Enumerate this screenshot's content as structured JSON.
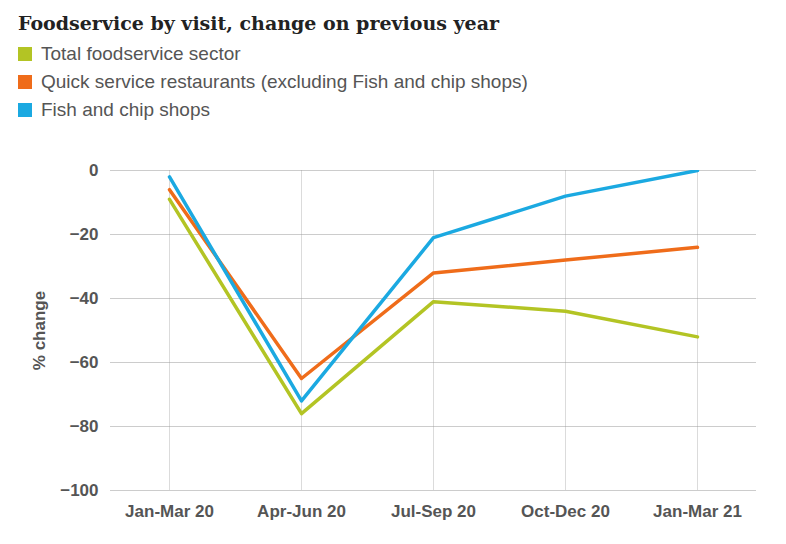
{
  "chart_data": {
    "type": "line",
    "title": "Foodservice by visit, change on previous year",
    "ylabel": "% change",
    "categories": [
      "Jan-Mar 20",
      "Apr-Jun 20",
      "Jul-Sep 20",
      "Oct-Dec 20",
      "Jan-Mar 21"
    ],
    "series": [
      {
        "name": "Total foodservice sector",
        "color": "#b3c424",
        "values": [
          -9,
          -76,
          -41,
          -44,
          -52
        ]
      },
      {
        "name": "Quick service restaurants (excluding Fish and chip shops)",
        "color": "#ef6c1a",
        "values": [
          -6,
          -65,
          -32,
          -28,
          -24
        ]
      },
      {
        "name": "Fish and chip shops",
        "color": "#1ba9e1",
        "values": [
          -2,
          -72,
          -21,
          -8,
          0
        ]
      }
    ],
    "ylim": [
      -100,
      0
    ],
    "yticks": [
      -100,
      -80,
      -60,
      -40,
      -20,
      0
    ],
    "grid": true,
    "legend": "top-left"
  }
}
